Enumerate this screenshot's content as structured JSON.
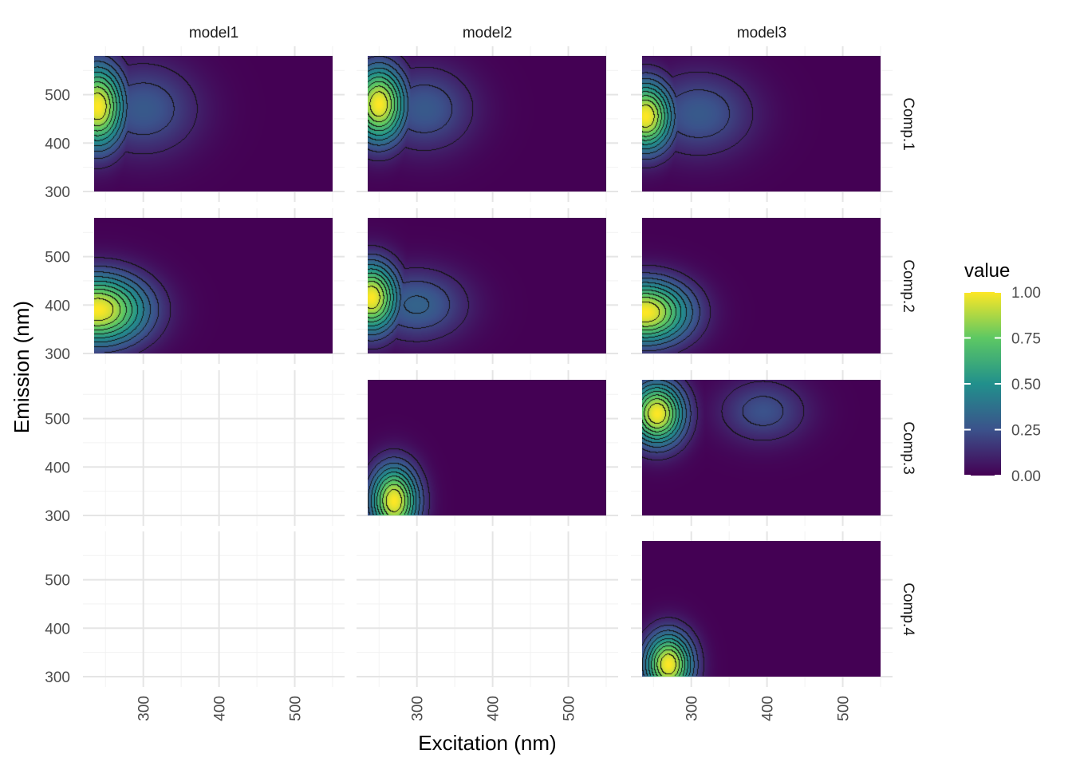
{
  "chart_data": {
    "type": "heatmap",
    "xlabel": "Excitation (nm)",
    "ylabel": "Emission (nm)",
    "columns": [
      "model1",
      "model2",
      "model3"
    ],
    "rows": [
      "Comp.1",
      "Comp.2",
      "Comp.3",
      "Comp.4"
    ],
    "x_range": [
      235,
      550
    ],
    "y_range": [
      300,
      580
    ],
    "x_ticks": [
      300,
      400,
      500
    ],
    "x_tick_labels": [
      "300",
      "400",
      "500"
    ],
    "y_ticks": [
      300,
      400,
      500
    ],
    "y_tick_labels": [
      "300",
      "400",
      "500"
    ],
    "grid": true,
    "contours": true,
    "colorscale": {
      "title": "value",
      "palette": "viridis",
      "colors": [
        "#440154",
        "#3b528b",
        "#21908c",
        "#5dc863",
        "#fde725"
      ],
      "range": [
        0,
        1
      ],
      "ticks": [
        0,
        0.25,
        0.5,
        0.75,
        1
      ],
      "tick_labels": [
        "0.00",
        "0.25",
        "0.50",
        "0.75",
        "1.00"
      ]
    },
    "panels": [
      {
        "model": "model1",
        "component": "Comp.1",
        "present": true,
        "peaks": [
          {
            "ex": 240,
            "em": 475,
            "value": 1.0,
            "sx": 25,
            "sy": 60
          },
          {
            "ex": 300,
            "em": 470,
            "value": 0.28,
            "sx": 50,
            "sy": 65
          }
        ]
      },
      {
        "model": "model1",
        "component": "Comp.2",
        "present": true,
        "peaks": [
          {
            "ex": 240,
            "em": 390,
            "value": 1.0,
            "sx": 45,
            "sy": 50
          }
        ]
      },
      {
        "model": "model1",
        "component": "Comp.3",
        "present": false
      },
      {
        "model": "model1",
        "component": "Comp.4",
        "present": false
      },
      {
        "model": "model2",
        "component": "Comp.1",
        "present": true,
        "peaks": [
          {
            "ex": 250,
            "em": 480,
            "value": 1.0,
            "sx": 25,
            "sy": 55
          },
          {
            "ex": 310,
            "em": 470,
            "value": 0.28,
            "sx": 45,
            "sy": 60
          }
        ]
      },
      {
        "model": "model2",
        "component": "Comp.2",
        "present": true,
        "peaks": [
          {
            "ex": 240,
            "em": 415,
            "value": 1.0,
            "sx": 25,
            "sy": 50
          },
          {
            "ex": 300,
            "em": 400,
            "value": 0.32,
            "sx": 45,
            "sy": 50
          }
        ]
      },
      {
        "model": "model2",
        "component": "Comp.3",
        "present": true,
        "peaks": [
          {
            "ex": 270,
            "em": 330,
            "value": 1.0,
            "sx": 22,
            "sy": 50
          }
        ]
      },
      {
        "model": "model2",
        "component": "Comp.4",
        "present": false
      },
      {
        "model": "model3",
        "component": "Comp.1",
        "present": true,
        "peaks": [
          {
            "ex": 240,
            "em": 455,
            "value": 1.0,
            "sx": 25,
            "sy": 50
          },
          {
            "ex": 310,
            "em": 460,
            "value": 0.28,
            "sx": 50,
            "sy": 60
          }
        ]
      },
      {
        "model": "model3",
        "component": "Comp.2",
        "present": true,
        "peaks": [
          {
            "ex": 240,
            "em": 385,
            "value": 1.0,
            "sx": 40,
            "sy": 45
          }
        ]
      },
      {
        "model": "model3",
        "component": "Comp.3",
        "present": true,
        "peaks": [
          {
            "ex": 255,
            "em": 510,
            "value": 1.0,
            "sx": 25,
            "sy": 45
          },
          {
            "ex": 395,
            "em": 515,
            "value": 0.25,
            "sx": 40,
            "sy": 45
          }
        ]
      },
      {
        "model": "model3",
        "component": "Comp.4",
        "present": true,
        "peaks": [
          {
            "ex": 270,
            "em": 325,
            "value": 1.0,
            "sx": 22,
            "sy": 45
          }
        ]
      }
    ]
  }
}
